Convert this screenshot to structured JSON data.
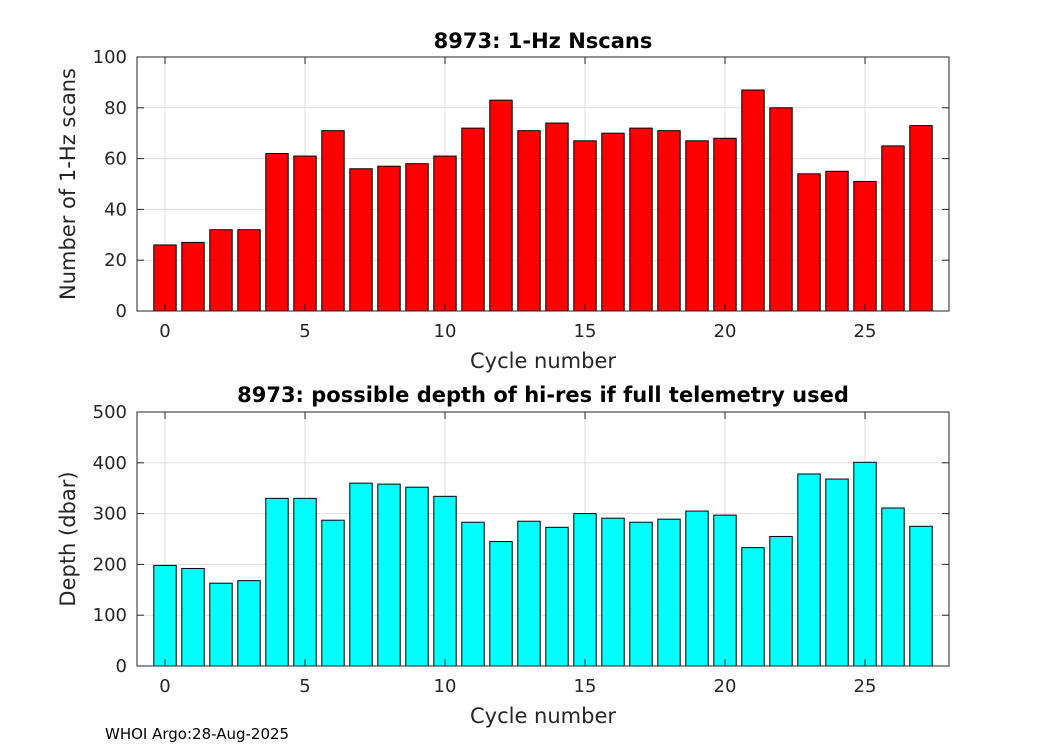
{
  "footer": "WHOI Argo:28-Aug-2025",
  "chart_data": [
    {
      "type": "bar",
      "title": "8973: 1-Hz Nscans",
      "xlabel": "Cycle number",
      "ylabel": "Number of 1-Hz scans",
      "x": [
        0,
        1,
        2,
        3,
        4,
        5,
        6,
        7,
        8,
        9,
        10,
        11,
        12,
        13,
        14,
        15,
        16,
        17,
        18,
        19,
        20,
        21,
        22,
        23,
        24,
        25,
        26,
        27
      ],
      "values": [
        26,
        27,
        32,
        32,
        62,
        61,
        71,
        56,
        57,
        58,
        61,
        72,
        83,
        71,
        74,
        67,
        70,
        72,
        71,
        67,
        68,
        87,
        80,
        54,
        55,
        51,
        65,
        73
      ],
      "xlim": [
        -1,
        28
      ],
      "ylim": [
        0,
        100
      ],
      "xticks": [
        0,
        5,
        10,
        15,
        20,
        25
      ],
      "yticks": [
        0,
        20,
        40,
        60,
        80,
        100
      ],
      "grid": true,
      "bar_color": "#ff0000"
    },
    {
      "type": "bar",
      "title": "8973: possible depth of hi-res if full telemetry used",
      "xlabel": "Cycle number",
      "ylabel": "Depth (dbar)",
      "x": [
        0,
        1,
        2,
        3,
        4,
        5,
        6,
        7,
        8,
        9,
        10,
        11,
        12,
        13,
        14,
        15,
        16,
        17,
        18,
        19,
        20,
        21,
        22,
        23,
        24,
        25,
        26,
        27
      ],
      "values": [
        198,
        192,
        163,
        168,
        330,
        330,
        287,
        360,
        358,
        352,
        334,
        283,
        245,
        285,
        273,
        300,
        291,
        283,
        289,
        305,
        297,
        233,
        255,
        378,
        368,
        401,
        311,
        275
      ],
      "xlim": [
        -1,
        28
      ],
      "ylim": [
        0,
        500
      ],
      "xticks": [
        0,
        5,
        10,
        15,
        20,
        25
      ],
      "yticks": [
        0,
        100,
        200,
        300,
        400,
        500
      ],
      "grid": true,
      "bar_color": "#00ffff"
    }
  ]
}
